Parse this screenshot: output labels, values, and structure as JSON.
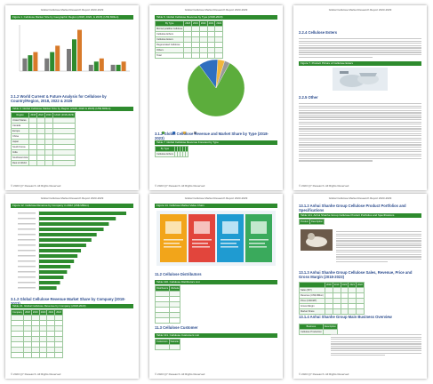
{
  "header_text": "Global Cellulose Market Research Report 2023-2029",
  "footer_text": "© 2023 QY Research. All Rights Reserved",
  "colors": {
    "accent": "#2e8b2e",
    "heading": "#2e4e8f",
    "pie_main": "#5cad3c",
    "pie_blue": "#2f6fbf"
  },
  "page_numbers": [
    "",
    "",
    "",
    "",
    "",
    ""
  ],
  "p1": {
    "figure_title": "Figure 1. Cellulose Market Size by Geographic Region (2018, 2022, & 2029) (US$ Million)",
    "bars": [
      {
        "label": "North America",
        "values": [
          4,
          5,
          6
        ]
      },
      {
        "label": "Europe",
        "values": [
          4,
          6,
          8
        ]
      },
      {
        "label": "Asia-Pacific",
        "values": [
          7,
          10,
          13
        ]
      },
      {
        "label": "Latin America",
        "values": [
          2,
          3,
          4
        ]
      },
      {
        "label": "Middle East & Africa",
        "values": [
          2,
          2,
          3
        ]
      }
    ],
    "section_heading": "2.1.2 World Current & Future Analysis for Cellulose by Country/Region, 2018, 2022 & 2029",
    "table_title": "Table 3. Global Cellulose Market Size by Region (2018, 2022 & 2029) (US$ Million)",
    "table_head": [
      "Region",
      "2018",
      "2022",
      "2029",
      "CAGR (2018-2029)"
    ],
    "table_rows": [
      [
        "United States",
        "",
        "",
        "",
        ""
      ],
      [
        "Canada",
        "",
        "",
        "",
        ""
      ],
      [
        "Europe",
        "",
        "",
        "",
        ""
      ],
      [
        "China",
        "",
        "",
        "",
        ""
      ],
      [
        "Japan",
        "",
        "",
        "",
        ""
      ],
      [
        "South Korea",
        "",
        "",
        "",
        ""
      ],
      [
        "India",
        "",
        "",
        "",
        ""
      ],
      [
        "Southeast Asia",
        "",
        "",
        "",
        ""
      ],
      [
        "Rest of World",
        "",
        "",
        "",
        ""
      ]
    ]
  },
  "p2": {
    "table_title": "Table 6. Global Cellulose Revenue by Type (2018-2023)",
    "table_head": [
      "By Type",
      "2018",
      "2019",
      "2020",
      "2021",
      "2022"
    ],
    "table_rows": [
      [
        "Microcrystalline Cellulose",
        "",
        "",
        "",
        "",
        ""
      ],
      [
        "Cellulose Ethers",
        "",
        "",
        "",
        "",
        ""
      ],
      [
        "Cellulose Esters",
        "",
        "",
        "",
        "",
        ""
      ],
      [
        "Regenerated Cellulose",
        "",
        "",
        "",
        "",
        ""
      ],
      [
        "Others",
        "",
        "",
        "",
        "",
        ""
      ],
      [
        "Total",
        "",
        "",
        "",
        "",
        ""
      ]
    ],
    "pie_values": [
      82,
      11,
      4,
      3
    ],
    "pie_legend": [
      "",
      "",
      "",
      ""
    ],
    "section_heading": "3.1.2 Global Cellulose Revenue and Market Share by Type (2018-2023)",
    "table2_title": "Table 7. Global Cellulose Revenue Forecast by Type",
    "table2_head": [
      "By Type",
      "",
      "",
      "",
      "",
      ""
    ],
    "table2_rows": [
      [
        "Cellulose Ethers",
        "",
        "",
        "",
        "",
        ""
      ]
    ]
  },
  "p3": {
    "section_heading": "2.2.4 Cellulose Esters",
    "figure_title": "Figure 7. Product Picture of Cellulose Esters",
    "section_heading2": "2.2.5 Other"
  },
  "p4": {
    "figure_title": "Figure 12. Cellulose Revenue by Company in 2022 (US$ Million)",
    "hbars": [
      100,
      88,
      80,
      74,
      66,
      60,
      54,
      48,
      44,
      40,
      36,
      32,
      28,
      24,
      20
    ],
    "section_heading": "3.1.2 Global Cellulose Revenue Market Share by Company (2018-2023)",
    "table_title": "Table 21. Global Cellulose Revenue by Company (2018-2023)",
    "table_head": [
      "Company",
      "2018",
      "2019",
      "2020",
      "2021",
      "2022"
    ],
    "table_rows": [
      [
        "",
        "",
        "",
        "",
        "",
        ""
      ],
      [
        "",
        "",
        "",
        "",
        "",
        ""
      ],
      [
        "",
        "",
        "",
        "",
        "",
        ""
      ],
      [
        "",
        "",
        "",
        "",
        "",
        ""
      ],
      [
        "",
        "",
        "",
        "",
        "",
        ""
      ],
      [
        "",
        "",
        "",
        "",
        "",
        ""
      ],
      [
        "",
        "",
        "",
        "",
        "",
        ""
      ],
      [
        "",
        "",
        "",
        "",
        "",
        ""
      ]
    ]
  },
  "p5": {
    "figure_title": "Figure 14. Cellulose Market Value Chain",
    "section_heading": "11.2 Cellulose Distributors",
    "table_title": "Table 130. Cellulose Distributors List",
    "table_head": [
      "Distributors",
      "Website"
    ],
    "table_rows": [
      [
        "",
        ""
      ],
      [
        "",
        ""
      ],
      [
        "",
        ""
      ],
      [
        "",
        ""
      ],
      [
        "",
        ""
      ],
      [
        "",
        ""
      ]
    ],
    "section_heading2": "11.3 Cellulose Customer",
    "table2_title": "Table 131. Cellulose Customers List",
    "table2_head": [
      "Customers",
      "Website"
    ]
  },
  "p6": {
    "section_heading": "13.1.2 Anhui Shanhe Group Cellulose Product Portfolios and Specifications",
    "table_title": "Table 141. Anhui Shanhe Group Cellulose Product Portfolios and Specifications",
    "table_head": [
      "Product",
      "Description"
    ],
    "section_heading2": "13.1.3 Anhui Shanhe Group Cellulose Sales, Revenue, Price and Gross Margin (2018-2023)",
    "table2_head": [
      "",
      "2018",
      "2019",
      "2020",
      "2021",
      "2022"
    ],
    "table2_rows": [
      [
        "Sales (MT)",
        "",
        "",
        "",
        "",
        ""
      ],
      [
        "Revenue (US$ Million)",
        "",
        "",
        "",
        "",
        ""
      ],
      [
        "Price (USD/MT)",
        "",
        "",
        "",
        "",
        ""
      ],
      [
        "Gross Margin",
        "",
        "",
        "",
        "",
        ""
      ],
      [
        "Market Share",
        "",
        "",
        "",
        "",
        ""
      ]
    ],
    "section_heading3": "13.1.4 Anhui Shanhe Group Main Business Overview",
    "table3_head": [
      "Business",
      "Description"
    ],
    "table3_rows": [
      [
        "Cellulose Production",
        ""
      ]
    ]
  }
}
